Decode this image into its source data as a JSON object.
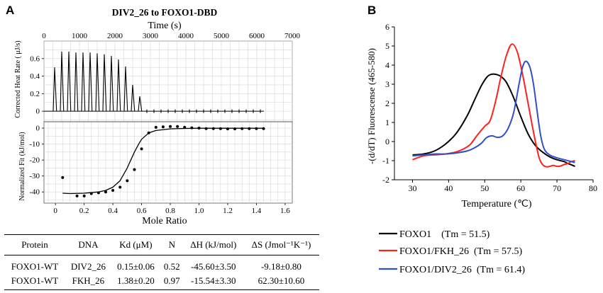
{
  "panel_a": {
    "letter": "A",
    "title": "DIV2_26 to FOXO1-DBD",
    "top_xlabel": "Time (s)",
    "top_ylabel": "Corrected Heat Rate ( μJ/s)",
    "bottom_ylabel": "Normalized Fit (kJ/mol)",
    "bottom_xlabel": "Mole Ratio"
  },
  "panel_b": {
    "letter": "B",
    "ylabel": "-(d/dT) Fluorescense (465-580)",
    "xlabel": "Temperature (℃)"
  },
  "table": {
    "headers": [
      "Protein",
      "DNA",
      "Kd (μM)",
      "N",
      "ΔH (kJ/mol)",
      "ΔS (Jmol⁻¹K⁻¹)"
    ],
    "rows": [
      [
        "FOXO1-WT",
        "DIV2_26",
        "0.15±0.06",
        "0.52",
        "-45.60±3.50",
        "-9.18±0.80"
      ],
      [
        "FOXO1-WT",
        "FKH_26",
        "1.38±0.20",
        "0.97",
        "-15.54±3.30",
        "62.30±10.60"
      ]
    ]
  },
  "chart_data": [
    {
      "type": "line",
      "panel": "A-top",
      "title": "DIV2_26 to FOXO1-DBD",
      "xlabel": "Time (s)",
      "ylabel": "Corrected Heat Rate ( μJ/s)",
      "xlim": [
        0,
        7000
      ],
      "ylim": [
        -0.12,
        0.8
      ],
      "xticks": [
        0,
        1000,
        2000,
        3000,
        4000,
        5000,
        6000,
        7000
      ],
      "yticks": [
        0,
        0.2,
        0.4,
        0.6
      ],
      "baseline_x": [
        0,
        6200
      ],
      "peaks": {
        "times": [
          300,
          500,
          700,
          900,
          1100,
          1300,
          1500,
          1700,
          1900,
          2100,
          2300,
          2500,
          2700,
          2900,
          3100,
          3300,
          3500,
          3700,
          3900,
          4100,
          4300,
          4500,
          4700,
          4900,
          5100,
          5300,
          5500,
          5700,
          5900,
          6100
        ],
        "heights": [
          0.5,
          0.68,
          0.68,
          0.67,
          0.67,
          0.67,
          0.66,
          0.65,
          0.63,
          0.59,
          0.51,
          0.3,
          0.17,
          0.02,
          0.02,
          0.02,
          0.02,
          0.02,
          0.02,
          0.02,
          0.02,
          0.02,
          0.02,
          0.02,
          0.02,
          0.02,
          0.02,
          0.02,
          0.02,
          0.02
        ]
      },
      "grid": true
    },
    {
      "type": "scatter",
      "panel": "A-bottom",
      "xlabel": "Mole Ratio",
      "ylabel": "Normalized Fit (kJ/mol)",
      "xlim": [
        -0.08,
        1.65
      ],
      "ylim": [
        -47,
        4
      ],
      "xticks": [
        0,
        0.2,
        0.4,
        0.6,
        0.8,
        1.0,
        1.2,
        1.4,
        1.6
      ],
      "yticks": [
        0,
        -10,
        -20,
        -30,
        -40
      ],
      "points": {
        "x": [
          0.05,
          0.15,
          0.2,
          0.25,
          0.3,
          0.35,
          0.4,
          0.45,
          0.5,
          0.55,
          0.6,
          0.65,
          0.7,
          0.75,
          0.8,
          0.85,
          0.9,
          0.95,
          1.0,
          1.05,
          1.1,
          1.15,
          1.2,
          1.25,
          1.3,
          1.35,
          1.4,
          1.45
        ],
        "y": [
          -31,
          -42.5,
          -42.5,
          -41,
          -40.5,
          -40,
          -39,
          -37,
          -33,
          -26,
          -13,
          -3,
          0.5,
          0.8,
          1,
          1,
          0.5,
          0.2,
          0,
          -0.3,
          -0.3,
          -0.3,
          -0.5,
          -0.5,
          -0.3,
          -0.3,
          -0.3,
          -0.3
        ]
      },
      "fit": {
        "x": [
          0.05,
          0.1,
          0.2,
          0.3,
          0.35,
          0.4,
          0.45,
          0.5,
          0.55,
          0.58,
          0.6,
          0.65,
          0.7,
          0.8,
          0.9,
          1.0,
          1.2,
          1.45
        ],
        "y": [
          -40.8,
          -41,
          -40.8,
          -40,
          -39,
          -37,
          -33,
          -25,
          -15,
          -10,
          -7,
          -3,
          -1.5,
          -0.5,
          -0.2,
          -0.1,
          -0.1,
          -0.1
        ]
      },
      "grid": true
    },
    {
      "type": "line",
      "panel": "B",
      "xlabel": "Temperature (℃)",
      "ylabel": "-(d/dT) Fluorescense (465-580)",
      "xlim": [
        25,
        80
      ],
      "ylim": [
        -2,
        6
      ],
      "xticks": [
        30,
        40,
        50,
        60,
        70,
        80
      ],
      "yticks": [
        -2,
        -1,
        0,
        1,
        2,
        3,
        4,
        5,
        6
      ],
      "legend_position": "bottom",
      "series": [
        {
          "name": "FOXO1    (Tm = 51.5)",
          "color": "#000000",
          "x": [
            30,
            33,
            36,
            39,
            42,
            45,
            47,
            49,
            50.5,
            51.5,
            53,
            54.5,
            56,
            58,
            60,
            62,
            64,
            66,
            68,
            70,
            72,
            73,
            74,
            75
          ],
          "y": [
            -0.7,
            -0.65,
            -0.5,
            -0.15,
            0.4,
            1.3,
            2.1,
            2.9,
            3.35,
            3.5,
            3.52,
            3.4,
            3.1,
            2.3,
            1.3,
            0.4,
            -0.2,
            -0.55,
            -0.8,
            -0.95,
            -1.05,
            -1.15,
            -1.22,
            -1.3
          ]
        },
        {
          "name": "FOXO1/FKH_26  (Tm = 57.5)",
          "color": "#ff2020",
          "x": [
            30,
            33,
            36,
            39,
            42,
            44,
            46,
            48,
            50,
            51.5,
            53,
            54.5,
            56,
            57.5,
            59,
            60.5,
            62,
            63.5,
            65,
            66,
            67,
            68,
            69,
            70,
            71,
            72,
            73,
            74,
            75
          ],
          "y": [
            -0.95,
            -0.75,
            -0.7,
            -0.65,
            -0.55,
            -0.4,
            -0.15,
            0.35,
            0.8,
            1.1,
            2.1,
            3.4,
            4.5,
            5.1,
            4.7,
            3.5,
            2.0,
            0.5,
            -0.8,
            -1.2,
            -1.32,
            -1.3,
            -1.25,
            -1.3,
            -1.28,
            -1.2,
            -1.15,
            -1.05,
            -1.0
          ]
        },
        {
          "name": "FOXO1/DIV2_26  (Tm = 61.4)",
          "color": "#3050c8",
          "x": [
            30,
            33,
            36,
            39,
            42,
            45,
            47,
            49,
            50.5,
            52,
            53.5,
            55,
            56.5,
            58,
            59.5,
            60.5,
            61.4,
            62.5,
            63.5,
            64.5,
            65.5,
            66.5,
            68,
            70,
            72,
            74,
            75
          ],
          "y": [
            -0.75,
            -0.7,
            -0.65,
            -0.65,
            -0.6,
            -0.5,
            -0.35,
            -0.1,
            0.2,
            0.3,
            0.22,
            0.3,
            0.7,
            1.5,
            3.0,
            3.9,
            4.2,
            3.9,
            3.0,
            1.6,
            0.3,
            -0.4,
            -0.7,
            -0.85,
            -0.95,
            -1.05,
            -1.1
          ]
        }
      ]
    }
  ]
}
